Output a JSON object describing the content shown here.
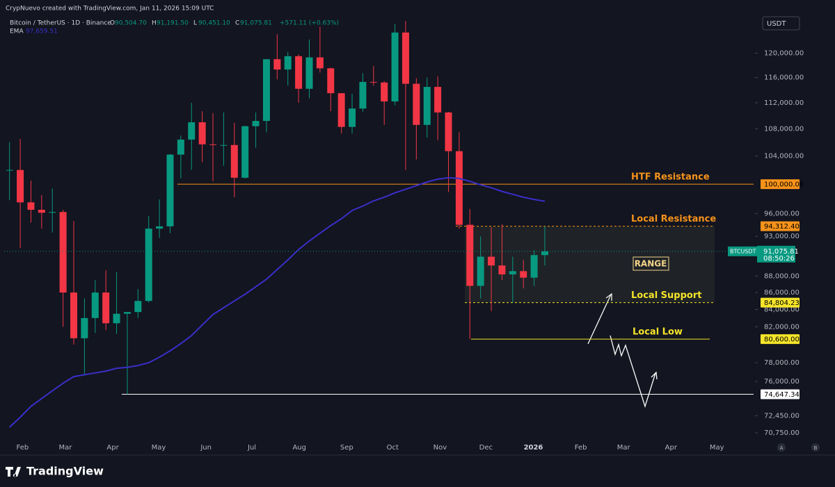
{
  "header": {
    "credit": "CrypNuevo created with TradingView.com, Jan 11, 2026 15:09 UTC",
    "symbol": "Bitcoin / TetherUS · 1D · Binance",
    "ohlc": [
      {
        "key": "O",
        "text": "90,504.70"
      },
      {
        "key": "H",
        "text": "91,191.50"
      },
      {
        "key": "L",
        "text": "90,451.10"
      },
      {
        "key": "C",
        "text": "91,075.81"
      }
    ],
    "change": "+571.11 (+0.63%)",
    "currency": "USDT",
    "brand": "TradingView",
    "scale_buttons": [
      "A",
      "B"
    ]
  },
  "chart_data": {
    "type": "candlestick",
    "log": true,
    "up_color": "#089981",
    "down_color": "#f23645",
    "x": [
      "2025-01-20",
      "2025-01-27",
      "2025-02-03",
      "2025-02-10",
      "2025-02-17",
      "2025-02-24",
      "2025-03-03",
      "2025-03-10",
      "2025-03-17",
      "2025-03-24",
      "2025-03-31",
      "2025-04-07",
      "2025-04-14",
      "2025-04-21",
      "2025-04-28",
      "2025-05-05",
      "2025-05-12",
      "2025-05-19",
      "2025-05-26",
      "2025-06-02",
      "2025-06-09",
      "2025-06-16",
      "2025-06-23",
      "2025-06-30",
      "2025-07-07",
      "2025-07-14",
      "2025-07-21",
      "2025-07-28",
      "2025-08-04",
      "2025-08-11",
      "2025-08-18",
      "2025-08-25",
      "2025-09-01",
      "2025-09-08",
      "2025-09-15",
      "2025-09-22",
      "2025-09-29",
      "2025-10-06",
      "2025-10-13",
      "2025-10-20",
      "2025-10-27",
      "2025-11-03",
      "2025-11-10",
      "2025-11-17",
      "2025-11-24",
      "2025-12-01",
      "2025-12-08",
      "2025-12-15",
      "2025-12-22",
      "2025-12-29",
      "2026-01-05"
    ],
    "open": [
      102000,
      102000,
      97500,
      96500,
      96100,
      96200,
      86000,
      80700,
      83000,
      86000,
      82400,
      83500,
      83700,
      85000,
      94000,
      94300,
      104200,
      106400,
      109000,
      105700,
      105600,
      105600,
      100900,
      108400,
      109200,
      119000,
      117300,
      119500,
      114200,
      119300,
      117500,
      113500,
      108300,
      111100,
      115300,
      115200,
      112200,
      123500,
      115000,
      108600,
      114500,
      110500,
      104700,
      94500,
      86800,
      90400,
      89300,
      88200,
      88600,
      87800,
      90600
    ],
    "high": [
      106000,
      106500,
      100500,
      98500,
      99400,
      96500,
      95000,
      85300,
      87500,
      88700,
      88500,
      83700,
      86400,
      95700,
      97900,
      104300,
      107000,
      112000,
      110700,
      110400,
      110500,
      108900,
      108500,
      110500,
      119000,
      123200,
      120200,
      119800,
      122300,
      124500,
      117600,
      113500,
      113400,
      116700,
      117900,
      115400,
      125000,
      125500,
      115900,
      116000,
      116200,
      110600,
      107500,
      96600,
      93000,
      94200,
      94600,
      90400,
      90000,
      91200,
      94312
    ],
    "low": [
      97800,
      91500,
      94800,
      94000,
      93500,
      82000,
      80000,
      76600,
      81300,
      81600,
      81200,
      74650,
      83000,
      84800,
      92800,
      93400,
      100800,
      102000,
      103100,
      100400,
      102600,
      98200,
      100800,
      105200,
      107500,
      115700,
      114700,
      112000,
      112700,
      116800,
      110700,
      107300,
      107300,
      110600,
      114700,
      108600,
      111600,
      102000,
      103500,
      106700,
      106300,
      98900,
      94000,
      80600,
      85300,
      83800,
      87500,
      84800,
      86500,
      86800,
      89300
    ],
    "close": [
      102000,
      97500,
      96500,
      96100,
      96200,
      86000,
      80700,
      83000,
      86000,
      82400,
      83500,
      83700,
      85000,
      94000,
      94300,
      104200,
      106400,
      109000,
      105700,
      105600,
      105600,
      100900,
      108400,
      109200,
      119000,
      117300,
      119500,
      114200,
      119300,
      117500,
      113500,
      108300,
      111100,
      115300,
      115200,
      112200,
      123500,
      115000,
      108600,
      114500,
      110500,
      104700,
      94500,
      86800,
      90400,
      89300,
      88200,
      88600,
      87800,
      90600,
      91075.81
    ],
    "ema": {
      "name": "EMA",
      "value_label": "97,659.51",
      "color": "#3a2fc9",
      "values": [
        71300,
        72300,
        73400,
        74200,
        75000,
        75800,
        76500,
        76700,
        76900,
        77100,
        77400,
        77500,
        77700,
        78000,
        78600,
        79300,
        80100,
        81000,
        82200,
        83400,
        84200,
        85000,
        85800,
        86700,
        87600,
        88800,
        90000,
        91300,
        92400,
        93400,
        94400,
        95300,
        96400,
        97000,
        97700,
        98200,
        98800,
        99300,
        99800,
        100300,
        100700,
        100900,
        100800,
        100400,
        99900,
        99500,
        99000,
        98600,
        98200,
        97900,
        97660
      ]
    },
    "xlim": [
      "2025-01-20",
      "2026-05-25"
    ],
    "xticks": [
      {
        "value": "2025-02",
        "label": "Feb"
      },
      {
        "value": "2025-03",
        "label": "Mar"
      },
      {
        "value": "2025-04",
        "label": "Apr"
      },
      {
        "value": "2025-05",
        "label": "May"
      },
      {
        "value": "2025-06",
        "label": "Jun"
      },
      {
        "value": "2025-07",
        "label": "Jul"
      },
      {
        "value": "2025-08",
        "label": "Aug"
      },
      {
        "value": "2025-09",
        "label": "Sep"
      },
      {
        "value": "2025-10",
        "label": "Oct"
      },
      {
        "value": "2025-11",
        "label": "Nov"
      },
      {
        "value": "2025-12",
        "label": "Dec"
      },
      {
        "value": "2026-01",
        "label": "2026"
      },
      {
        "value": "2026-02",
        "label": "Feb"
      },
      {
        "value": "2026-03",
        "label": "Mar"
      },
      {
        "value": "2026-04",
        "label": "Apr"
      },
      {
        "value": "2026-05",
        "label": "May"
      }
    ],
    "ylim": [
      70270,
      126500
    ],
    "yticks": [
      {
        "value": 120000,
        "label": "120,000.00"
      },
      {
        "value": 116000,
        "label": "116,000.00"
      },
      {
        "value": 112000,
        "label": "112,000.00"
      },
      {
        "value": 108000,
        "label": "108,000.00"
      },
      {
        "value": 104000,
        "label": "104,000.00"
      },
      {
        "value": 96000,
        "label": "96,000.00"
      },
      {
        "value": 93000,
        "label": "93,000.00"
      },
      {
        "value": 88000,
        "label": "88,000.00"
      },
      {
        "value": 86000,
        "label": "86,000.00"
      },
      {
        "value": 84000,
        "label": "84,000.00"
      },
      {
        "value": 82000,
        "label": "82,000.00"
      },
      {
        "value": 78000,
        "label": "78,000.00"
      },
      {
        "value": 76000,
        "label": "76,000.00"
      },
      {
        "value": 72450,
        "label": "72,450.00"
      },
      {
        "value": 70750,
        "label": "70,750.00"
      }
    ],
    "last_price": {
      "name": "BTCUSDT",
      "value": 91075.81,
      "label": "91,075.81",
      "countdown": "08:50:26",
      "color": "#089981"
    },
    "levels": [
      {
        "name": "HTF Resistance",
        "value": 100000,
        "label": "100,000.00",
        "color": "#f7931a"
      },
      {
        "name": "Local Resistance",
        "value": 94312.4,
        "label": "94,312.40",
        "color": "#f7931a"
      },
      {
        "name": "Local Support",
        "value": 84804.23,
        "label": "84,804.23",
        "color": "#f5e52a"
      },
      {
        "name": "Local Low",
        "value": 80600,
        "label": "80,600.00",
        "color": "#f5e52a"
      },
      {
        "value": 74647.34,
        "label": "74,647.34",
        "color": "#ffffff"
      }
    ],
    "range_label": "RANGE"
  }
}
